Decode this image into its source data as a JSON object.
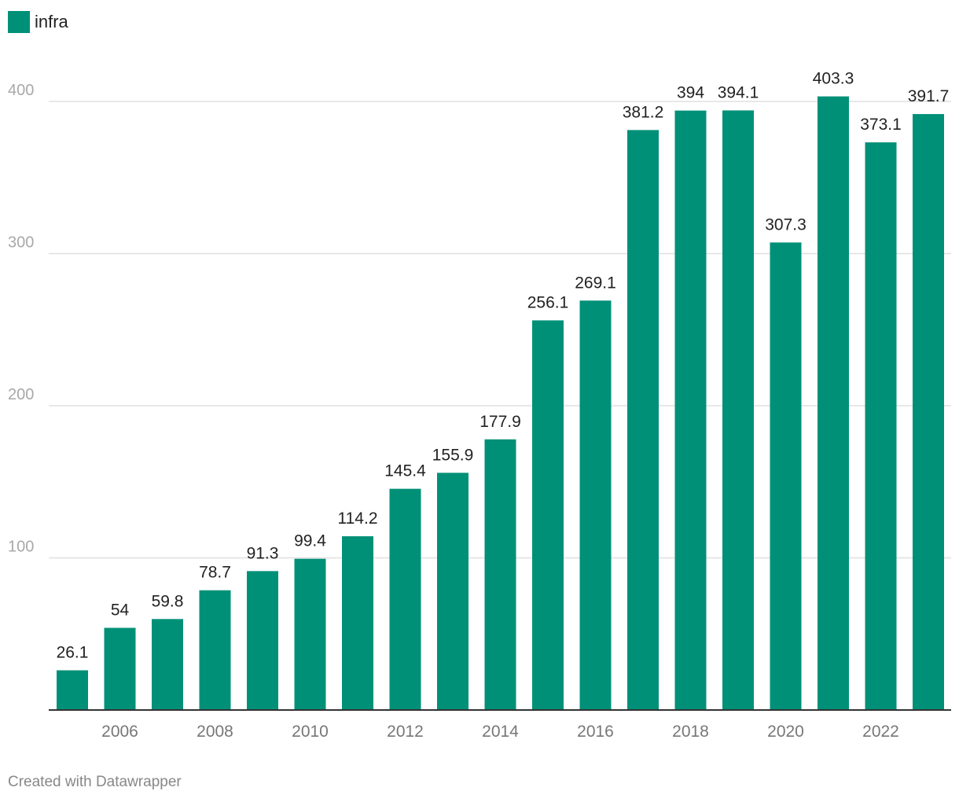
{
  "legend": {
    "label": "infra",
    "color": "#009077"
  },
  "footer": {
    "credit": "Created with Datawrapper"
  },
  "chart_data": {
    "type": "bar",
    "title": "",
    "xlabel": "",
    "ylabel": "",
    "ylim": [
      0,
      400
    ],
    "y_ticks": [
      100,
      200,
      300,
      400
    ],
    "x_tick_labels": [
      "2006",
      "2008",
      "2010",
      "2012",
      "2014",
      "2016",
      "2018",
      "2020",
      "2022"
    ],
    "grid": true,
    "legend_position": "top-left",
    "bar_color": "#009077",
    "series": [
      {
        "name": "infra",
        "categories": [
          "2005",
          "2006",
          "2007",
          "2008",
          "2009",
          "2010",
          "2011",
          "2012",
          "2013",
          "2014",
          "2015",
          "2016",
          "2017",
          "2018",
          "2019",
          "2020",
          "2021",
          "2022",
          "2023"
        ],
        "values": [
          26.1,
          54,
          59.8,
          78.7,
          91.3,
          99.4,
          114.2,
          145.4,
          155.9,
          177.9,
          256.1,
          269.1,
          381.2,
          394,
          394.1,
          307.3,
          403.3,
          373.1,
          391.7
        ],
        "labels": [
          "26.1",
          "54",
          "59.8",
          "78.7",
          "91.3",
          "99.4",
          "114.2",
          "145.4",
          "155.9",
          "177.9",
          "256.1",
          "269.1",
          "381.2",
          "394",
          "394.1",
          "307.3",
          "403.3",
          "373.1",
          "391.7"
        ]
      }
    ]
  }
}
